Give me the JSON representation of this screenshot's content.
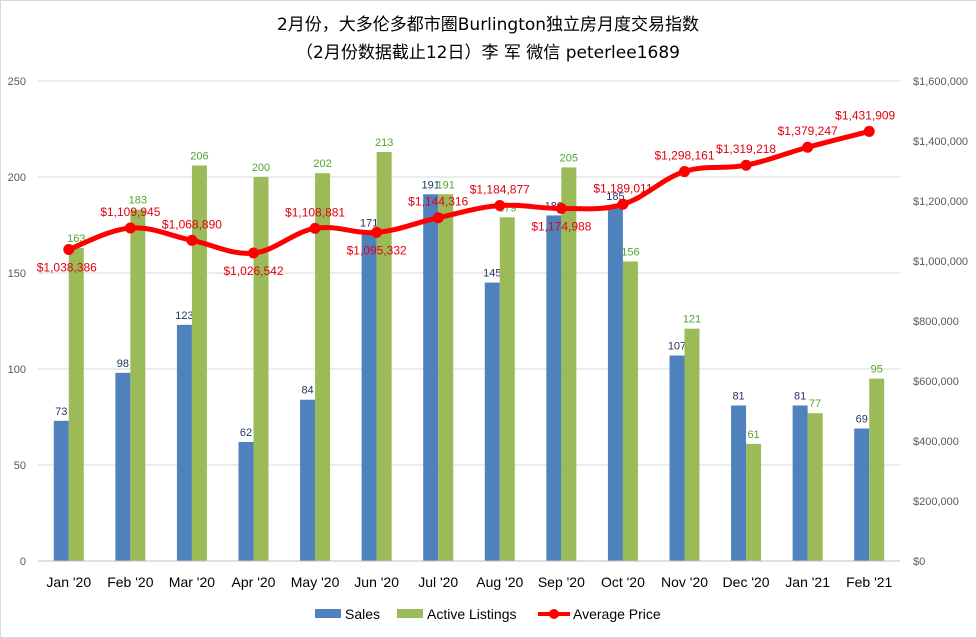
{
  "chart_data": {
    "type": "bar",
    "title": "2月份，大多伦多都市圈Burlington独立房月度交易指数",
    "subtitle": "（2月份数据截止12日）李 军  微信  peterlee1689",
    "categories": [
      "Jan '20",
      "Feb '20",
      "Mar '20",
      "Apr '20",
      "May '20",
      "Jun '20",
      "Jul '20",
      "Aug '20",
      "Sep '20",
      "Oct '20",
      "Nov '20",
      "Dec '20",
      "Jan '21",
      "Feb '21"
    ],
    "series": [
      {
        "name": "Sales",
        "type": "bar",
        "axis": "left",
        "color": "#4f81bd",
        "values": [
          73,
          98,
          123,
          62,
          84,
          171,
          191,
          145,
          180,
          185,
          107,
          81,
          81,
          69
        ],
        "labels": [
          "73",
          "98",
          "123",
          "62",
          "84",
          "171",
          "191",
          "145",
          "180",
          "185",
          "107",
          "81",
          "81",
          "69"
        ]
      },
      {
        "name": "Active Listings",
        "type": "bar",
        "axis": "left",
        "color": "#9bbb59",
        "values": [
          163,
          183,
          206,
          200,
          202,
          213,
          191,
          179,
          205,
          156,
          121,
          61,
          77,
          95
        ],
        "labels": [
          "163",
          "183",
          "206",
          "200",
          "202",
          "213",
          "191",
          "179",
          "205",
          "156",
          "121",
          "61",
          "77",
          "95"
        ]
      },
      {
        "name": "Average Price",
        "type": "line",
        "axis": "right",
        "color": "#ff0000",
        "values": [
          1038386,
          1109945,
          1068890,
          1026542,
          1108881,
          1095332,
          1144316,
          1184877,
          1174988,
          1189011,
          1298161,
          1319218,
          1379247,
          1431909
        ],
        "labels": [
          "$1,038,386",
          "$1,109,945",
          "$1,068,890",
          "$1,026,542",
          "$1,108,881",
          "$1,095,332",
          "$1,144,316",
          "$1,184,877",
          "$1,174,988",
          "$1,189,011",
          "$1,298,161",
          "$1,319,218",
          "$1,379,247",
          "$1,431,909"
        ]
      }
    ],
    "ylim_left": [
      0,
      250
    ],
    "yticks_left": [
      "0",
      "50",
      "100",
      "150",
      "200",
      "250"
    ],
    "ylim_right": [
      0,
      1600000
    ],
    "yticks_right": [
      "$0",
      "$200,000",
      "$400,000",
      "$600,000",
      "$800,000",
      "$1,000,000",
      "$1,200,000",
      "$1,400,000",
      "$1,600,000"
    ],
    "grid": true,
    "legend": "bottom"
  }
}
